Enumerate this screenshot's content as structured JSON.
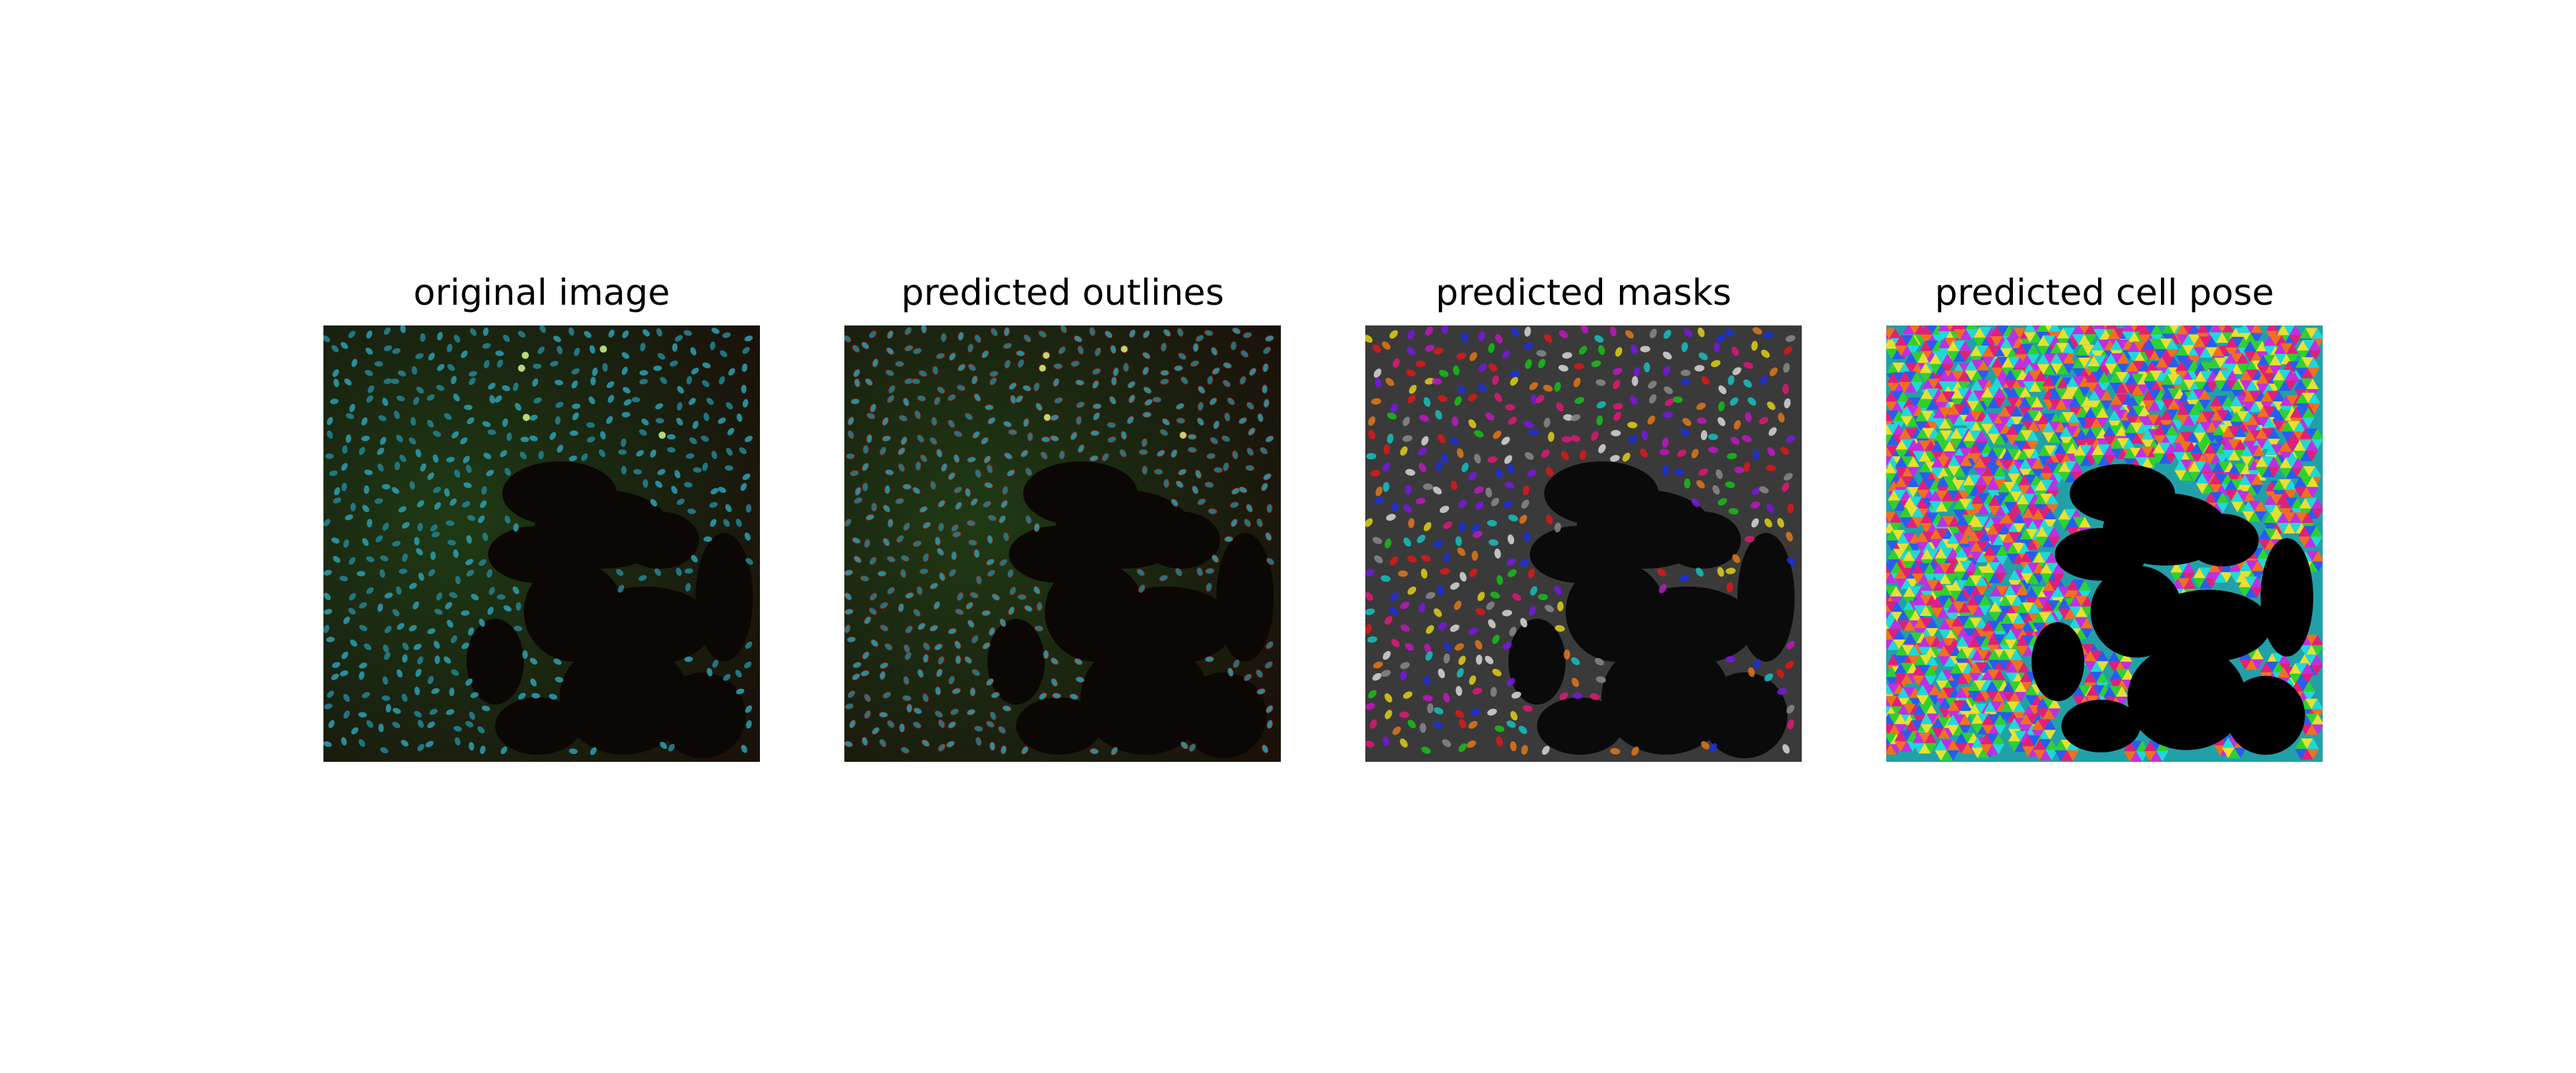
{
  "figure": {
    "panels": [
      {
        "title": "original image",
        "kind": "original"
      },
      {
        "title": "predicted outlines",
        "kind": "outlines"
      },
      {
        "title": "predicted masks",
        "kind": "masks"
      },
      {
        "title": "predicted cell pose",
        "kind": "flows"
      }
    ]
  }
}
